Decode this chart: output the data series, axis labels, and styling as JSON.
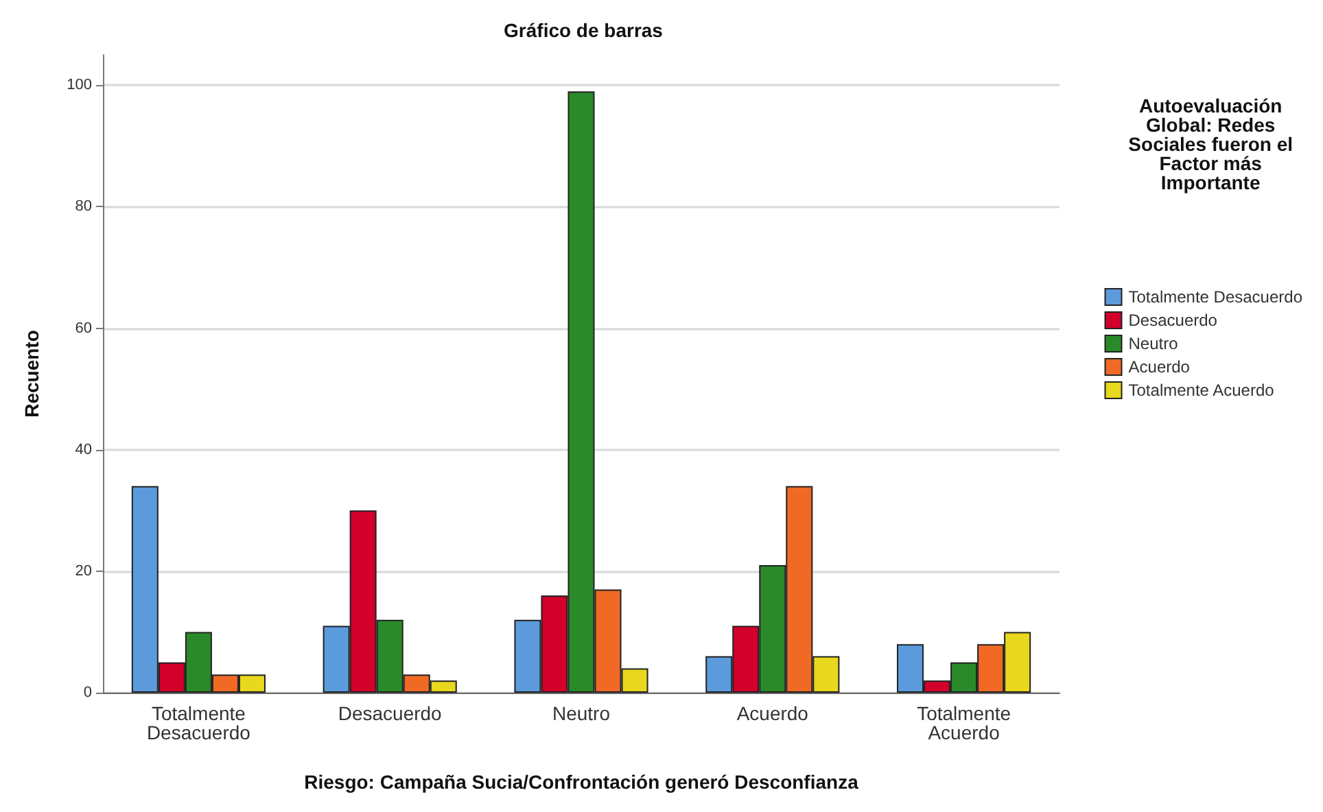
{
  "chart_data": {
    "type": "bar",
    "title": "Gráfico de barras",
    "xlabel": "Riesgo: Campaña Sucia/Confrontación generó Desconfianza",
    "ylabel": "Recuento",
    "legend_title": "Autoevaluación Global: Redes Sociales fueron el Factor más Importante",
    "categories": [
      "Totalmente Desacuerdo",
      "Desacuerdo",
      "Neutro",
      "Acuerdo",
      "Totalmente Acuerdo"
    ],
    "series": [
      {
        "name": "Totalmente Desacuerdo",
        "color": "#5b9bdc",
        "values": [
          34,
          11,
          12,
          6,
          8
        ]
      },
      {
        "name": "Desacuerdo",
        "color": "#d2002a",
        "values": [
          5,
          30,
          16,
          11,
          2
        ]
      },
      {
        "name": "Neutro",
        "color": "#2a8a2a",
        "values": [
          10,
          12,
          99,
          21,
          5
        ]
      },
      {
        "name": "Acuerdo",
        "color": "#f06a25",
        "values": [
          3,
          3,
          17,
          34,
          8
        ]
      },
      {
        "name": "Totalmente Acuerdo",
        "color": "#e8d81e",
        "values": [
          3,
          2,
          4,
          6,
          10
        ]
      }
    ],
    "ylim": [
      0,
      105
    ],
    "yticks": [
      0,
      20,
      40,
      60,
      80,
      100
    ],
    "grid": "y",
    "legend": "right"
  }
}
